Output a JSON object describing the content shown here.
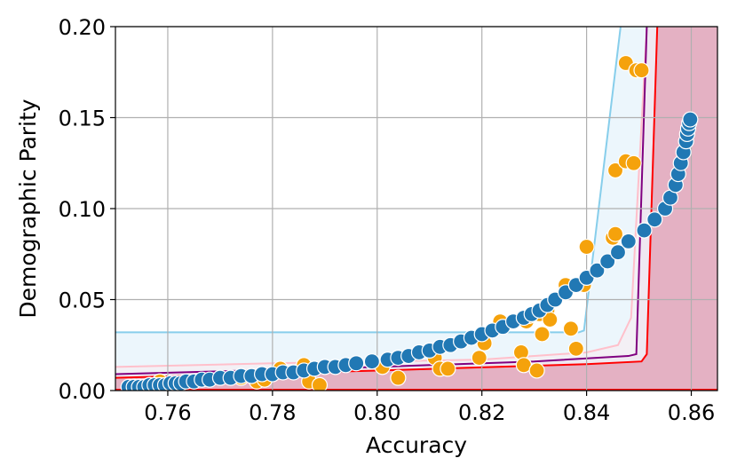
{
  "chart_data": {
    "type": "scatter",
    "xlabel": "Accuracy",
    "ylabel": "Demographic Parity",
    "xlim": [
      0.75,
      0.865
    ],
    "ylim": [
      0.0,
      0.2
    ],
    "xticks": [
      0.76,
      0.78,
      0.8,
      0.82,
      0.84,
      0.86
    ],
    "xtick_labels": [
      "0.76",
      "0.78",
      "0.80",
      "0.82",
      "0.84",
      "0.86"
    ],
    "yticks": [
      0.0,
      0.05,
      0.1,
      0.15,
      0.2
    ],
    "ytick_labels": [
      "0.00",
      "0.05",
      "0.10",
      "0.15",
      "0.20"
    ],
    "grid": true,
    "regions": [
      {
        "name": "",
        "color": "#87ceeb",
        "fill": "#e9f5fb",
        "fill_opacity": 0.85,
        "boundary": [
          [
            0.75,
            0.032
          ],
          [
            0.8385,
            0.032
          ],
          [
            0.8395,
            0.033
          ],
          [
            0.8465,
            0.2
          ]
        ]
      },
      {
        "name": "",
        "color": "#ffc0cb",
        "fill": "#f8ecf0",
        "fill_opacity": 0.6,
        "boundary": [
          [
            0.75,
            0.013
          ],
          [
            0.78,
            0.015
          ],
          [
            0.82,
            0.017
          ],
          [
            0.84,
            0.021
          ],
          [
            0.846,
            0.025
          ],
          [
            0.8485,
            0.04
          ],
          [
            0.8515,
            0.2
          ]
        ]
      },
      {
        "name": "",
        "color": "#800080",
        "fill": "#ede3ee",
        "fill_opacity": 0.6,
        "boundary": [
          [
            0.75,
            0.009
          ],
          [
            0.8,
            0.013
          ],
          [
            0.83,
            0.016
          ],
          [
            0.848,
            0.019
          ],
          [
            0.8495,
            0.02
          ],
          [
            0.8515,
            0.2
          ]
        ]
      },
      {
        "name": "",
        "color": "#ff0000",
        "fill": "#e4b1c3",
        "fill_opacity": 1.0,
        "boundary": [
          [
            0.75,
            0.007
          ],
          [
            0.8,
            0.011
          ],
          [
            0.84,
            0.0145
          ],
          [
            0.8505,
            0.016
          ],
          [
            0.8515,
            0.02
          ],
          [
            0.8535,
            0.2
          ]
        ]
      }
    ],
    "series": [
      {
        "name": "",
        "color": "#f5a20c",
        "points": [
          [
            0.7565,
            0.003
          ],
          [
            0.7585,
            0.005
          ],
          [
            0.774,
            0.007
          ],
          [
            0.777,
            0.005
          ],
          [
            0.7785,
            0.006
          ],
          [
            0.7815,
            0.012
          ],
          [
            0.786,
            0.014
          ],
          [
            0.787,
            0.005
          ],
          [
            0.789,
            0.003
          ],
          [
            0.801,
            0.013
          ],
          [
            0.804,
            0.007
          ],
          [
            0.811,
            0.018
          ],
          [
            0.812,
            0.012
          ],
          [
            0.8135,
            0.012
          ],
          [
            0.8195,
            0.018
          ],
          [
            0.8205,
            0.026
          ],
          [
            0.8235,
            0.038
          ],
          [
            0.8275,
            0.021
          ],
          [
            0.828,
            0.014
          ],
          [
            0.8285,
            0.038
          ],
          [
            0.829,
            0.041
          ],
          [
            0.8305,
            0.011
          ],
          [
            0.831,
            0.042
          ],
          [
            0.8315,
            0.031
          ],
          [
            0.8325,
            0.044
          ],
          [
            0.833,
            0.039
          ],
          [
            0.836,
            0.058
          ],
          [
            0.837,
            0.034
          ],
          [
            0.838,
            0.023
          ],
          [
            0.8395,
            0.058
          ],
          [
            0.84,
            0.079
          ],
          [
            0.845,
            0.084
          ],
          [
            0.8455,
            0.086
          ],
          [
            0.8455,
            0.121
          ],
          [
            0.8475,
            0.126
          ],
          [
            0.8475,
            0.18
          ],
          [
            0.849,
            0.125
          ],
          [
            0.8495,
            0.176
          ],
          [
            0.8505,
            0.176
          ]
        ]
      },
      {
        "name": "",
        "color": "#2178b4",
        "points": [
          [
            0.7525,
            0.002
          ],
          [
            0.7535,
            0.002
          ],
          [
            0.7545,
            0.002
          ],
          [
            0.7555,
            0.002
          ],
          [
            0.7565,
            0.003
          ],
          [
            0.7575,
            0.003
          ],
          [
            0.7585,
            0.003
          ],
          [
            0.7595,
            0.003
          ],
          [
            0.7605,
            0.004
          ],
          [
            0.7615,
            0.004
          ],
          [
            0.7625,
            0.004
          ],
          [
            0.7635,
            0.005
          ],
          [
            0.765,
            0.005
          ],
          [
            0.7665,
            0.006
          ],
          [
            0.768,
            0.006
          ],
          [
            0.77,
            0.007
          ],
          [
            0.772,
            0.007
          ],
          [
            0.774,
            0.008
          ],
          [
            0.776,
            0.008
          ],
          [
            0.778,
            0.009
          ],
          [
            0.78,
            0.009
          ],
          [
            0.782,
            0.01
          ],
          [
            0.784,
            0.01
          ],
          [
            0.786,
            0.011
          ],
          [
            0.788,
            0.012
          ],
          [
            0.79,
            0.013
          ],
          [
            0.792,
            0.013
          ],
          [
            0.794,
            0.014
          ],
          [
            0.796,
            0.015
          ],
          [
            0.799,
            0.016
          ],
          [
            0.802,
            0.017
          ],
          [
            0.804,
            0.018
          ],
          [
            0.806,
            0.019
          ],
          [
            0.808,
            0.021
          ],
          [
            0.81,
            0.022
          ],
          [
            0.812,
            0.024
          ],
          [
            0.814,
            0.025
          ],
          [
            0.816,
            0.027
          ],
          [
            0.818,
            0.029
          ],
          [
            0.82,
            0.031
          ],
          [
            0.822,
            0.033
          ],
          [
            0.824,
            0.035
          ],
          [
            0.826,
            0.038
          ],
          [
            0.828,
            0.04
          ],
          [
            0.8295,
            0.042
          ],
          [
            0.831,
            0.044
          ],
          [
            0.8325,
            0.047
          ],
          [
            0.834,
            0.05
          ],
          [
            0.836,
            0.054
          ],
          [
            0.838,
            0.058
          ],
          [
            0.84,
            0.062
          ],
          [
            0.842,
            0.066
          ],
          [
            0.844,
            0.071
          ],
          [
            0.846,
            0.076
          ],
          [
            0.848,
            0.082
          ],
          [
            0.851,
            0.088
          ],
          [
            0.853,
            0.094
          ],
          [
            0.855,
            0.1
          ],
          [
            0.856,
            0.106
          ],
          [
            0.857,
            0.113
          ],
          [
            0.8575,
            0.119
          ],
          [
            0.858,
            0.125
          ],
          [
            0.8585,
            0.131
          ],
          [
            0.859,
            0.137
          ],
          [
            0.8592,
            0.141
          ],
          [
            0.8594,
            0.144
          ],
          [
            0.8596,
            0.147
          ],
          [
            0.8598,
            0.149
          ]
        ]
      }
    ]
  }
}
